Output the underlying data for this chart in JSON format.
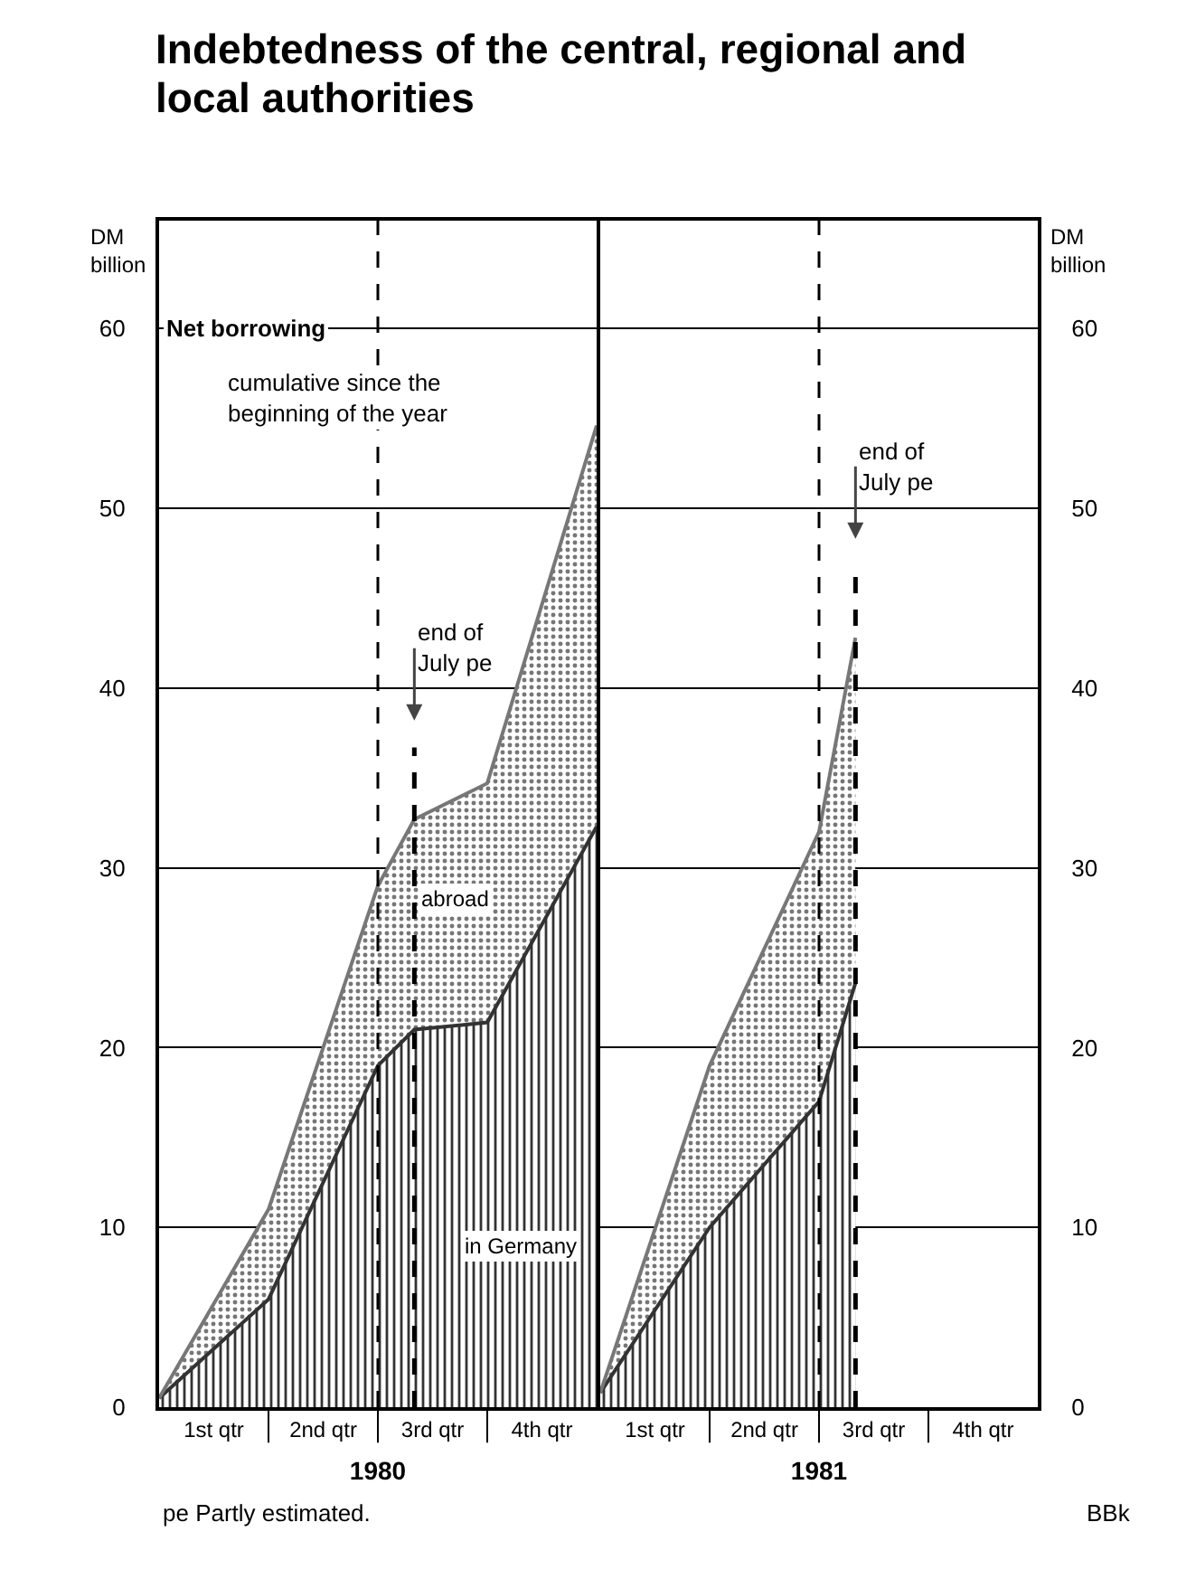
{
  "chart_data": [
    {
      "type": "area",
      "title": "Indebtedness of the central, regional and local authorities",
      "xlabel": "1980",
      "ylabel": "DM billion",
      "stacked": true,
      "categories": [
        null,
        null,
        null,
        "1st qtr",
        null,
        null,
        null,
        null,
        null,
        "2nd qtr",
        null,
        null,
        null,
        null,
        null,
        "3rd qtr",
        null,
        null,
        null,
        null,
        null,
        "4th qtr",
        null,
        null,
        null
      ],
      "series": [
        {
          "name": "in Germany",
          "color": "#333333",
          "values": [
            0.5,
            null,
            null,
            null,
            null,
            null,
            6,
            null,
            null,
            null,
            null,
            null,
            19,
            null,
            21,
            null,
            null,
            null,
            21.4,
            null,
            null,
            null,
            null,
            null,
            32.3
          ]
        },
        {
          "name": "abroad",
          "color": "#777777",
          "values": [
            0,
            null,
            null,
            null,
            null,
            null,
            5,
            null,
            null,
            null,
            null,
            null,
            10,
            null,
            11.7,
            null,
            null,
            null,
            13.3,
            null,
            null,
            null,
            null,
            null,
            22.3
          ]
        }
      ],
      "ylim": [
        0,
        66
      ],
      "yticks": [
        0,
        10,
        20,
        30,
        40,
        50,
        60
      ],
      "grid": "y",
      "annotations": [
        "Net borrowing",
        "cumulative since the beginning of the year",
        "pe Partly estimated.",
        "end of July pe"
      ]
    },
    {
      "type": "area",
      "xlabel": "1981",
      "ylabel": "DM billion",
      "stacked": true,
      "categories": [
        null,
        null,
        null,
        "1st qtr",
        null,
        null,
        null,
        null,
        null,
        "2nd qtr",
        null,
        null,
        null,
        null,
        null,
        "3rd qtr",
        null,
        null,
        null,
        null,
        null,
        "4th qtr",
        null,
        null,
        null
      ],
      "series": [
        {
          "color": "#333333",
          "values": [
            0.8,
            null,
            null,
            null,
            null,
            null,
            10,
            null,
            null,
            null,
            null,
            null,
            17,
            null,
            23.6,
            null,
            null,
            null,
            null,
            null,
            null,
            null,
            null,
            null,
            null
          ]
        },
        {
          "color": "#777777",
          "values": [
            0,
            null,
            null,
            null,
            null,
            null,
            9,
            null,
            null,
            null,
            null,
            null,
            15,
            null,
            19.2,
            null,
            null,
            null,
            null,
            null,
            null,
            null,
            null,
            null,
            null
          ]
        }
      ],
      "ylim": [
        0,
        66
      ],
      "yticks": [
        0,
        10,
        20,
        30,
        40,
        50,
        60
      ],
      "grid": "y",
      "annotations": [
        "end of July pe",
        "BBk"
      ]
    }
  ]
}
